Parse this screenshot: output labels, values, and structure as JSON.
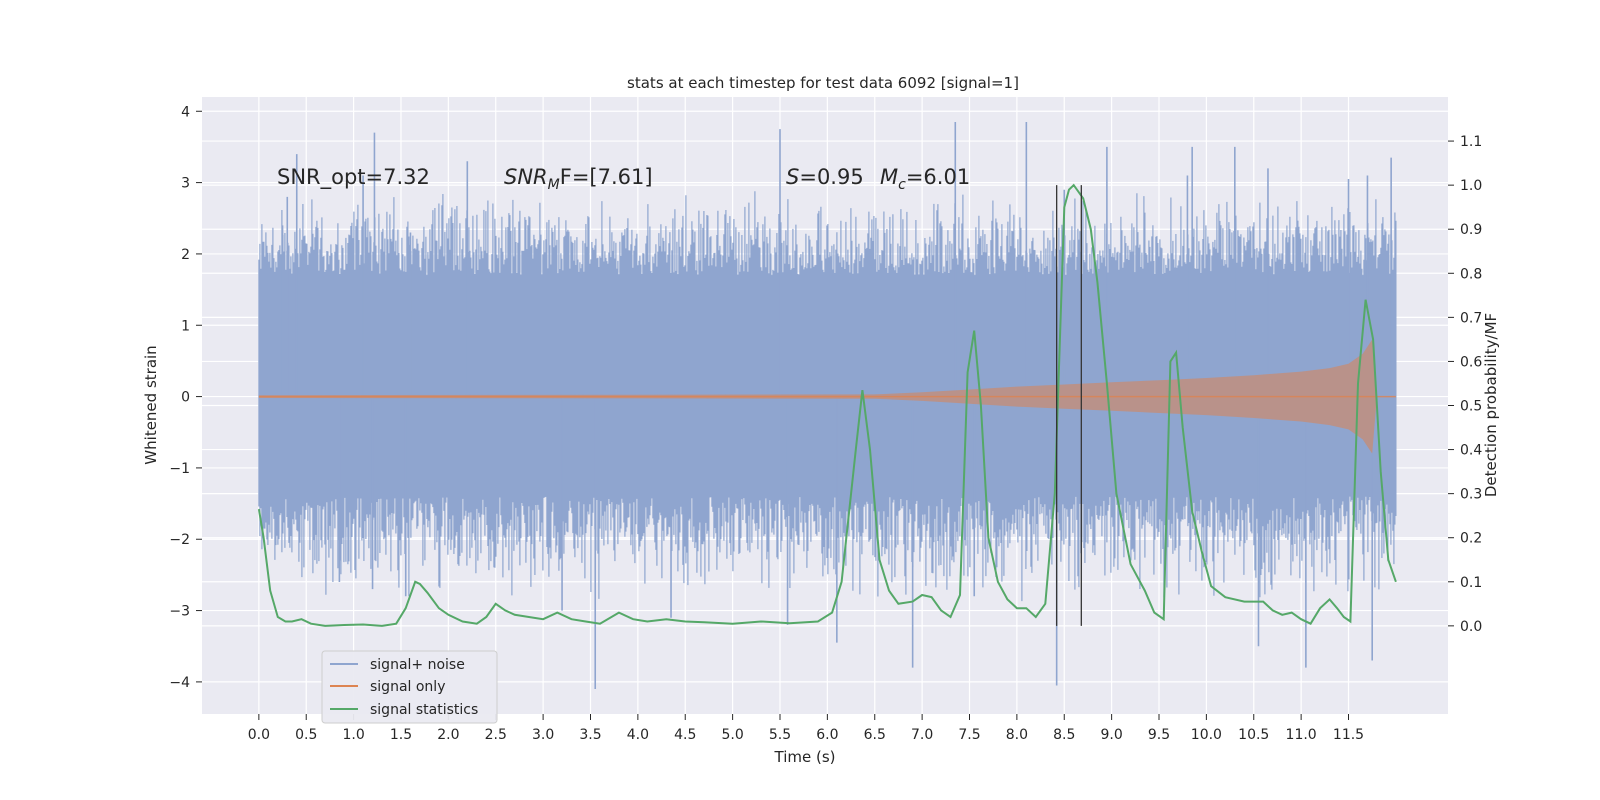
{
  "chart_data": {
    "type": "line",
    "title": "stats at each timestep for test data 6092 [signal=1]",
    "xlabel": "Time (s)",
    "ylabel": "Whitened strain",
    "ylabel_right": "Detection probability/MF",
    "xlim": [
      -0.6,
      12.55
    ],
    "ylim": [
      -4.45,
      4.2
    ],
    "ylim_right": [
      -0.2,
      1.2
    ],
    "x_ticks": [
      0.0,
      0.5,
      1.0,
      1.5,
      2.0,
      2.5,
      3.0,
      3.5,
      4.0,
      4.5,
      5.0,
      5.5,
      6.0,
      6.5,
      7.0,
      7.5,
      8.0,
      8.5,
      9.0,
      9.5,
      10.0,
      10.5,
      11.0,
      11.5
    ],
    "x_tick_labels": [
      "0.0",
      "0.5",
      "1.0",
      "1.5",
      "2.0",
      "2.5",
      "3.0",
      "3.5",
      "4.0",
      "4.5",
      "5.0",
      "5.5",
      "6.0",
      "6.5",
      "7.0",
      "7.5",
      "8.0",
      "8.5",
      "9.0",
      "9.5",
      "10.0",
      "10.5",
      "11.0",
      "11.5"
    ],
    "y_ticks": [
      -4,
      -3,
      -2,
      -1,
      0,
      1,
      2,
      3,
      4
    ],
    "y_tick_labels": [
      "−4",
      "−3",
      "−2",
      "−1",
      "0",
      "1",
      "2",
      "3",
      "4"
    ],
    "y_ticks_right": [
      0.0,
      0.1,
      0.2,
      0.3,
      0.4,
      0.5,
      0.6,
      0.7,
      0.8,
      0.9,
      1.0,
      1.1
    ],
    "y_tick_labels_right": [
      "0.0",
      "0.1",
      "0.2",
      "0.3",
      "0.4",
      "0.5",
      "0.6",
      "0.7",
      "0.8",
      "0.9",
      "1.0",
      "1.1"
    ],
    "grid": true,
    "legend_position": "lower-left",
    "annotations": {
      "snr_opt": "SNR_opt=7.32",
      "snr_mf_base": "SNR",
      "snr_mf_sub": "M",
      "snr_mf_rest": "F=[7.61]",
      "s_label": "S",
      "s_value": "=0.95",
      "mc_base": "M",
      "mc_sub": "c",
      "mc_value": "=6.01"
    },
    "vertical_lines_x": [
      8.42,
      8.68
    ],
    "series": [
      {
        "name": "signal+ noise",
        "color": "#8fa5cf",
        "kind": "noise_band",
        "x_range": [
          0.0,
          12.0
        ],
        "core_envelope": [
          -1.4,
          1.7
        ],
        "outer_envelope": [
          -2.9,
          2.9
        ],
        "spikes": [
          {
            "x": 0.25,
            "y": 2.4
          },
          {
            "x": 0.3,
            "y": 2.8
          },
          {
            "x": 0.4,
            "y": 3.4
          },
          {
            "x": 0.85,
            "y": -2.6
          },
          {
            "x": 1.1,
            "y": 3.1
          },
          {
            "x": 1.2,
            "y": -2.7
          },
          {
            "x": 1.22,
            "y": 3.7
          },
          {
            "x": 1.55,
            "y": -2.8
          },
          {
            "x": 1.6,
            "y": 2.3
          },
          {
            "x": 2.2,
            "y": 3.3
          },
          {
            "x": 3.2,
            "y": -3.0
          },
          {
            "x": 3.55,
            "y": -4.1
          },
          {
            "x": 4.35,
            "y": -3.1
          },
          {
            "x": 5.5,
            "y": 3.75
          },
          {
            "x": 5.58,
            "y": -3.2
          },
          {
            "x": 6.1,
            "y": -3.45
          },
          {
            "x": 6.9,
            "y": -3.8
          },
          {
            "x": 7.35,
            "y": 3.85
          },
          {
            "x": 7.55,
            "y": -2.8
          },
          {
            "x": 8.1,
            "y": 3.85
          },
          {
            "x": 8.42,
            "y": -4.05
          },
          {
            "x": 8.5,
            "y": 2.9
          },
          {
            "x": 8.95,
            "y": 3.5
          },
          {
            "x": 9.8,
            "y": 3.1
          },
          {
            "x": 9.85,
            "y": 3.5
          },
          {
            "x": 10.3,
            "y": 3.5
          },
          {
            "x": 10.55,
            "y": -3.5
          },
          {
            "x": 10.65,
            "y": 3.2
          },
          {
            "x": 11.05,
            "y": -3.8
          },
          {
            "x": 11.5,
            "y": 3.05
          },
          {
            "x": 11.7,
            "y": 3.1
          },
          {
            "x": 11.75,
            "y": -3.7
          },
          {
            "x": 11.95,
            "y": 3.35
          }
        ]
      },
      {
        "name": "signal only",
        "color": "#dd8452",
        "kind": "chirp_envelope",
        "envelope_x": [
          0.0,
          6.5,
          7.0,
          7.5,
          8.0,
          8.5,
          9.0,
          9.5,
          10.0,
          10.5,
          11.0,
          11.3,
          11.5,
          11.65,
          11.75,
          11.8
        ],
        "envelope_y": [
          0.02,
          0.03,
          0.06,
          0.1,
          0.14,
          0.17,
          0.2,
          0.23,
          0.26,
          0.3,
          0.35,
          0.4,
          0.46,
          0.6,
          0.8,
          0.0
        ]
      },
      {
        "name": "signal statistics",
        "color": "#55a868",
        "axis": "right",
        "x": [
          0.0,
          0.05,
          0.12,
          0.2,
          0.28,
          0.35,
          0.45,
          0.55,
          0.7,
          0.9,
          1.1,
          1.3,
          1.45,
          1.55,
          1.65,
          1.7,
          1.78,
          1.9,
          2.0,
          2.15,
          2.3,
          2.4,
          2.5,
          2.6,
          2.7,
          2.85,
          3.0,
          3.15,
          3.3,
          3.45,
          3.6,
          3.8,
          3.95,
          4.1,
          4.3,
          4.5,
          4.7,
          5.0,
          5.3,
          5.6,
          5.9,
          6.05,
          6.15,
          6.3,
          6.37,
          6.45,
          6.55,
          6.65,
          6.75,
          6.9,
          7.0,
          7.1,
          7.2,
          7.3,
          7.4,
          7.48,
          7.55,
          7.62,
          7.7,
          7.8,
          7.9,
          8.0,
          8.1,
          8.2,
          8.3,
          8.4,
          8.5,
          8.55,
          8.6,
          8.65,
          8.7,
          8.78,
          8.85,
          8.95,
          9.05,
          9.2,
          9.35,
          9.45,
          9.55,
          9.62,
          9.68,
          9.75,
          9.85,
          9.95,
          10.05,
          10.2,
          10.4,
          10.6,
          10.7,
          10.8,
          10.9,
          11.0,
          11.1,
          11.2,
          11.3,
          11.38,
          11.45,
          11.52,
          11.6,
          11.68,
          11.76,
          11.84,
          11.92,
          12.0
        ],
        "values": [
          0.265,
          0.2,
          0.08,
          0.02,
          0.01,
          0.01,
          0.015,
          0.005,
          0.0,
          0.002,
          0.003,
          0.0,
          0.005,
          0.04,
          0.1,
          0.095,
          0.075,
          0.04,
          0.025,
          0.01,
          0.005,
          0.02,
          0.05,
          0.035,
          0.025,
          0.02,
          0.015,
          0.03,
          0.015,
          0.01,
          0.005,
          0.03,
          0.015,
          0.01,
          0.015,
          0.01,
          0.008,
          0.005,
          0.01,
          0.006,
          0.01,
          0.03,
          0.1,
          0.4,
          0.535,
          0.4,
          0.15,
          0.08,
          0.05,
          0.055,
          0.07,
          0.065,
          0.035,
          0.02,
          0.07,
          0.575,
          0.67,
          0.5,
          0.2,
          0.1,
          0.06,
          0.04,
          0.04,
          0.02,
          0.05,
          0.3,
          0.95,
          0.99,
          1.0,
          0.985,
          0.97,
          0.9,
          0.78,
          0.55,
          0.3,
          0.14,
          0.08,
          0.03,
          0.015,
          0.6,
          0.62,
          0.45,
          0.26,
          0.17,
          0.09,
          0.065,
          0.055,
          0.055,
          0.035,
          0.025,
          0.03,
          0.015,
          0.005,
          0.04,
          0.06,
          0.04,
          0.02,
          0.01,
          0.55,
          0.74,
          0.65,
          0.35,
          0.15,
          0.1
        ]
      }
    ]
  }
}
